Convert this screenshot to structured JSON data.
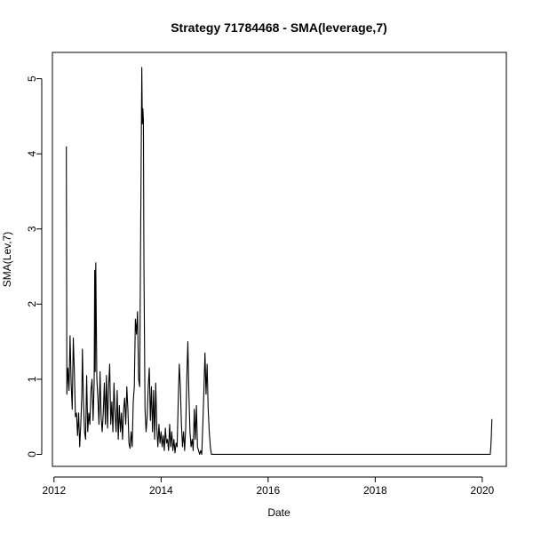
{
  "chart_data": {
    "type": "line",
    "title": "Strategy 71784468 - SMA(leverage,7)",
    "xlabel": "Date",
    "ylabel": "SMA(Lev,7)",
    "xlim": [
      2011.97,
      2020.45
    ],
    "ylim": [
      -0.16,
      5.35
    ],
    "x_ticks": [
      2012,
      2014,
      2016,
      2018,
      2020
    ],
    "x_tick_labels": [
      "2012",
      "2014",
      "2016",
      "2018",
      "2020"
    ],
    "y_ticks": [
      0,
      1,
      2,
      3,
      4,
      5
    ],
    "y_tick_labels": [
      "0",
      "1",
      "2",
      "3",
      "4",
      "5"
    ],
    "grid": false,
    "legend": "none",
    "series": [
      {
        "color": "#000000",
        "points": [
          [
            2012.23,
            4.1
          ],
          [
            2012.24,
            0.8
          ],
          [
            2012.26,
            1.15
          ],
          [
            2012.28,
            0.85
          ],
          [
            2012.3,
            1.58
          ],
          [
            2012.32,
            0.95
          ],
          [
            2012.34,
            0.6
          ],
          [
            2012.36,
            1.55
          ],
          [
            2012.38,
            1.1
          ],
          [
            2012.4,
            0.5
          ],
          [
            2012.42,
            0.55
          ],
          [
            2012.44,
            0.25
          ],
          [
            2012.46,
            0.55
          ],
          [
            2012.48,
            0.1
          ],
          [
            2012.5,
            0.4
          ],
          [
            2012.52,
            0.8
          ],
          [
            2012.53,
            1.4
          ],
          [
            2012.55,
            0.7
          ],
          [
            2012.57,
            0.3
          ],
          [
            2012.59,
            0.2
          ],
          [
            2012.61,
            1.05
          ],
          [
            2012.63,
            0.3
          ],
          [
            2012.65,
            0.55
          ],
          [
            2012.67,
            0.4
          ],
          [
            2012.69,
            0.85
          ],
          [
            2012.71,
            1.0
          ],
          [
            2012.73,
            0.45
          ],
          [
            2012.75,
            0.95
          ],
          [
            2012.76,
            2.45
          ],
          [
            2012.77,
            1.1
          ],
          [
            2012.78,
            2.55
          ],
          [
            2012.8,
            1.0
          ],
          [
            2012.82,
            0.75
          ],
          [
            2012.84,
            0.4
          ],
          [
            2012.86,
            1.1
          ],
          [
            2012.88,
            0.5
          ],
          [
            2012.9,
            0.3
          ],
          [
            2012.92,
            0.55
          ],
          [
            2012.94,
            0.95
          ],
          [
            2012.96,
            0.4
          ],
          [
            2012.98,
            1.05
          ],
          [
            2013.0,
            0.35
          ],
          [
            2013.02,
            0.9
          ],
          [
            2013.04,
            1.2
          ],
          [
            2013.06,
            0.4
          ],
          [
            2013.08,
            0.7
          ],
          [
            2013.1,
            0.3
          ],
          [
            2013.12,
            0.95
          ],
          [
            2013.14,
            0.55
          ],
          [
            2013.16,
            0.3
          ],
          [
            2013.18,
            0.85
          ],
          [
            2013.2,
            0.2
          ],
          [
            2013.22,
            0.65
          ],
          [
            2013.24,
            0.3
          ],
          [
            2013.26,
            0.55
          ],
          [
            2013.28,
            0.2
          ],
          [
            2013.3,
            0.6
          ],
          [
            2013.32,
            0.75
          ],
          [
            2013.34,
            0.4
          ],
          [
            2013.36,
            0.9
          ],
          [
            2013.38,
            0.6
          ],
          [
            2013.4,
            0.15
          ],
          [
            2013.42,
            0.08
          ],
          [
            2013.44,
            0.3
          ],
          [
            2013.46,
            0.1
          ],
          [
            2013.48,
            0.7
          ],
          [
            2013.5,
            0.9
          ],
          [
            2013.52,
            1.8
          ],
          [
            2013.54,
            1.6
          ],
          [
            2013.56,
            1.9
          ],
          [
            2013.58,
            1.0
          ],
          [
            2013.6,
            0.9
          ],
          [
            2013.62,
            3.1
          ],
          [
            2013.64,
            5.15
          ],
          [
            2013.65,
            4.4
          ],
          [
            2013.66,
            4.6
          ],
          [
            2013.67,
            4.45
          ],
          [
            2013.68,
            2.5
          ],
          [
            2013.7,
            0.6
          ],
          [
            2013.72,
            0.3
          ],
          [
            2013.74,
            0.5
          ],
          [
            2013.76,
            0.9
          ],
          [
            2013.78,
            1.15
          ],
          [
            2013.8,
            0.45
          ],
          [
            2013.82,
            0.9
          ],
          [
            2013.84,
            0.3
          ],
          [
            2013.86,
            0.85
          ],
          [
            2013.88,
            0.2
          ],
          [
            2013.9,
            0.95
          ],
          [
            2013.92,
            0.35
          ],
          [
            2013.94,
            0.1
          ],
          [
            2013.96,
            0.4
          ],
          [
            2013.98,
            0.15
          ],
          [
            2014.0,
            0.3
          ],
          [
            2014.02,
            0.1
          ],
          [
            2014.04,
            0.25
          ],
          [
            2014.06,
            0.05
          ],
          [
            2014.08,
            0.35
          ],
          [
            2014.1,
            0.15
          ],
          [
            2014.12,
            0.2
          ],
          [
            2014.14,
            0.05
          ],
          [
            2014.16,
            0.4
          ],
          [
            2014.18,
            0.1
          ],
          [
            2014.2,
            0.3
          ],
          [
            2014.22,
            0.05
          ],
          [
            2014.24,
            0.2
          ],
          [
            2014.26,
            0.02
          ],
          [
            2014.28,
            0.15
          ],
          [
            2014.3,
            0.1
          ],
          [
            2014.32,
            0.7
          ],
          [
            2014.34,
            1.2
          ],
          [
            2014.36,
            0.9
          ],
          [
            2014.38,
            0.4
          ],
          [
            2014.4,
            0.1
          ],
          [
            2014.42,
            0.3
          ],
          [
            2014.44,
            0.05
          ],
          [
            2014.46,
            0.35
          ],
          [
            2014.48,
            1.0
          ],
          [
            2014.5,
            1.5
          ],
          [
            2014.52,
            0.8
          ],
          [
            2014.54,
            0.3
          ],
          [
            2014.56,
            0.1
          ],
          [
            2014.58,
            0.2
          ],
          [
            2014.6,
            0.05
          ],
          [
            2014.62,
            0.6
          ],
          [
            2014.64,
            0.2
          ],
          [
            2014.66,
            0.65
          ],
          [
            2014.68,
            0.1
          ],
          [
            2014.7,
            0.05
          ],
          [
            2014.72,
            0.0
          ],
          [
            2014.74,
            0.05
          ],
          [
            2014.76,
            0.0
          ],
          [
            2014.78,
            0.4
          ],
          [
            2014.8,
            0.85
          ],
          [
            2014.82,
            1.35
          ],
          [
            2014.84,
            0.8
          ],
          [
            2014.86,
            1.2
          ],
          [
            2014.88,
            0.6
          ],
          [
            2014.9,
            0.3
          ],
          [
            2014.92,
            0.1
          ],
          [
            2014.94,
            0.0
          ],
          [
            2016.0,
            0.0
          ],
          [
            2018.0,
            0.0
          ],
          [
            2020.15,
            0.0
          ],
          [
            2020.16,
            0.1
          ],
          [
            2020.17,
            0.25
          ],
          [
            2020.18,
            0.47
          ]
        ]
      }
    ]
  }
}
